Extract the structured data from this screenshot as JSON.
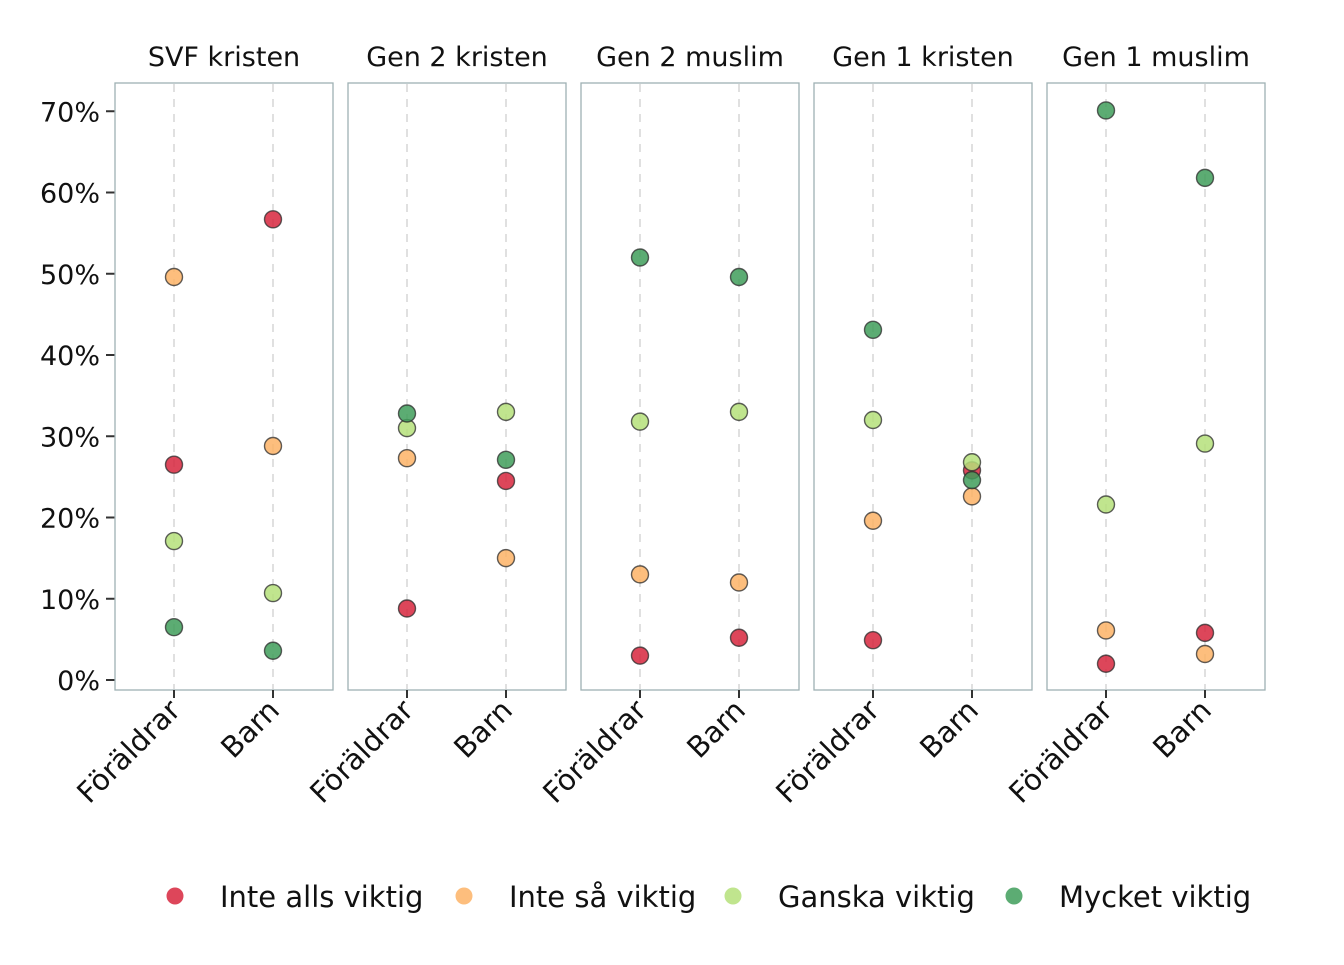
{
  "chart_data": {
    "type": "scatter",
    "facets": [
      "SVF kristen",
      "Gen 2 kristen",
      "Gen 2 muslim",
      "Gen 1 kristen",
      "Gen 1 muslim"
    ],
    "categories": [
      "Föräldrar",
      "Barn"
    ],
    "y_ticks": [
      0,
      10,
      20,
      30,
      40,
      50,
      60,
      70
    ],
    "y_tick_labels": [
      "0%",
      "10%",
      "20%",
      "30%",
      "40%",
      "50%",
      "60%",
      "70%"
    ],
    "ylim": [
      -1,
      73
    ],
    "grid": "vertical dashed",
    "legend_position": "bottom",
    "series": [
      {
        "name": "Inte alls viktig",
        "color": "#d7263d",
        "values": [
          [
            26.5,
            56.7
          ],
          [
            8.8,
            24.5
          ],
          [
            3.0,
            5.2
          ],
          [
            4.9,
            25.8
          ],
          [
            2.0,
            5.8
          ]
        ]
      },
      {
        "name": "Inte så viktig",
        "color": "#fdb366",
        "values": [
          [
            49.6,
            28.8
          ],
          [
            27.3,
            15.0
          ],
          [
            13.0,
            12.0
          ],
          [
            19.6,
            22.6
          ],
          [
            6.1,
            3.2
          ]
        ]
      },
      {
        "name": "Ganska viktig",
        "color": "#b5e07a",
        "values": [
          [
            17.1,
            10.7
          ],
          [
            31.0,
            33.0
          ],
          [
            31.8,
            33.0
          ],
          [
            32.0,
            26.8
          ],
          [
            21.6,
            29.1
          ]
        ]
      },
      {
        "name": "Mycket viktig",
        "color": "#3f9e5a",
        "values": [
          [
            6.5,
            3.6
          ],
          [
            32.8,
            27.1
          ],
          [
            52.0,
            49.6
          ],
          [
            43.1,
            24.6
          ],
          [
            70.1,
            61.8
          ]
        ]
      }
    ]
  }
}
